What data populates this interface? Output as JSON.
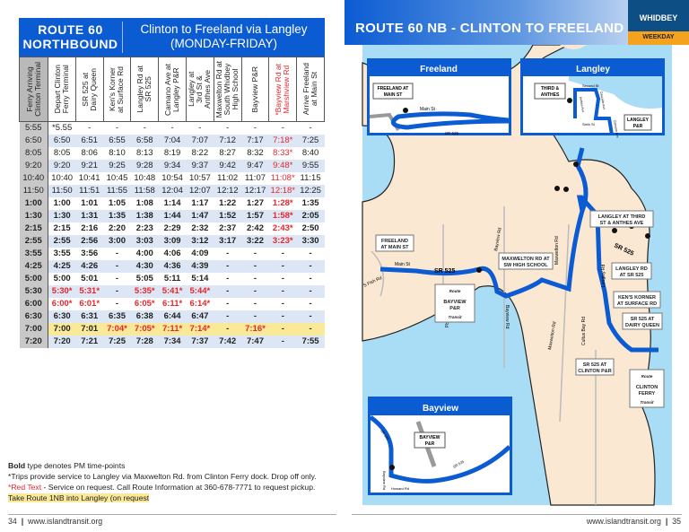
{
  "schedule": {
    "route": "ROUTE 60",
    "direction": "NORTHBOUND",
    "service": "Clinton to Freeland via Langley",
    "days": "(MONDAY-FRIDAY)",
    "columns": [
      {
        "label": "Ferry Arriving\nClinton Terminal"
      },
      {
        "label": "Depart Clinton\nFerry Terminal"
      },
      {
        "label": "SR 525 at\nDairy Queen"
      },
      {
        "label": "Ken's Korner\nat Surface Rd"
      },
      {
        "label": "Langley Rd at\nSR 525"
      },
      {
        "label": "Camano Ave at\nLangley P&R"
      },
      {
        "label": "Langley at\n3rd St &\nAnthes Ave"
      },
      {
        "label": "Maxwelton Rd at\nSouth Whidbey\nHigh School"
      },
      {
        "label": "Bayview P&R"
      },
      {
        "label": "*Bayview Rd at\nMarshview Rd",
        "red": true
      },
      {
        "label": "Arrive Freeland\nat Main St"
      }
    ],
    "rows": [
      {
        "pm": false,
        "cells": [
          "5:55",
          "*5.55",
          "-",
          "-",
          "-",
          "-",
          "-",
          "-",
          "-",
          "-",
          "-"
        ]
      },
      {
        "pm": false,
        "cells": [
          "6:50",
          "6:50",
          "6:51",
          "6:55",
          "6:58",
          "7:04",
          "7:07",
          "7:12",
          "7:17",
          "7:18*",
          "7:25"
        ]
      },
      {
        "pm": false,
        "cells": [
          "8:05",
          "8:05",
          "8:06",
          "8:10",
          "8:13",
          "8:19",
          "8:22",
          "8:27",
          "8:32",
          "8:33*",
          "8:40"
        ]
      },
      {
        "pm": false,
        "cells": [
          "9:20",
          "9:20",
          "9:21",
          "9:25",
          "9:28",
          "9:34",
          "9:37",
          "9:42",
          "9:47",
          "9:48*",
          "9:55"
        ]
      },
      {
        "pm": false,
        "cells": [
          "10:40",
          "10:40",
          "10:41",
          "10:45",
          "10:48",
          "10:54",
          "10:57",
          "11:02",
          "11:07",
          "11:08*",
          "11:15"
        ]
      },
      {
        "pm": false,
        "cells": [
          "11:50",
          "11:50",
          "11:51",
          "11:55",
          "11:58",
          "12:04",
          "12:07",
          "12:12",
          "12:17",
          "12:18*",
          "12:25"
        ]
      },
      {
        "pm": true,
        "cells": [
          "1:00",
          "1:00",
          "1:01",
          "1:05",
          "1:08",
          "1:14",
          "1:17",
          "1:22",
          "1:27",
          "1:28*",
          "1:35"
        ]
      },
      {
        "pm": true,
        "cells": [
          "1:30",
          "1:30",
          "1:31",
          "1:35",
          "1:38",
          "1:44",
          "1:47",
          "1:52",
          "1:57",
          "1:58*",
          "2:05"
        ]
      },
      {
        "pm": true,
        "cells": [
          "2:15",
          "2:15",
          "2:16",
          "2:20",
          "2:23",
          "2:29",
          "2:32",
          "2:37",
          "2:42",
          "2:43*",
          "2:50"
        ]
      },
      {
        "pm": true,
        "cells": [
          "2:55",
          "2:55",
          "2:56",
          "3:00",
          "3:03",
          "3:09",
          "3:12",
          "3:17",
          "3:22",
          "3:23*",
          "3:30"
        ]
      },
      {
        "pm": true,
        "cells": [
          "3:55",
          "3:55",
          "3:56",
          "-",
          "4:00",
          "4:06",
          "4:09",
          "-",
          "-",
          "-",
          "-"
        ]
      },
      {
        "pm": true,
        "cells": [
          "4:25",
          "4:25",
          "4:26",
          "-",
          "4:30",
          "4:36",
          "4:39",
          "-",
          "-",
          "-",
          "-"
        ]
      },
      {
        "pm": true,
        "cells": [
          "5:00",
          "5:00",
          "5:01",
          "-",
          "5:05",
          "5:11",
          "5:14",
          "-",
          "-",
          "-",
          "-"
        ]
      },
      {
        "pm": true,
        "cells": [
          "5:30",
          "5:30*",
          "5:31*",
          "-",
          "5:35*",
          "5:41*",
          "5:44*",
          "-",
          "-",
          "-",
          "-"
        ]
      },
      {
        "pm": true,
        "cells": [
          "6:00",
          "6:00*",
          "6:01*",
          "-",
          "6:05*",
          "6:11*",
          "6:14*",
          "-",
          "-",
          "-",
          "-"
        ]
      },
      {
        "pm": true,
        "cells": [
          "6:30",
          "6:30",
          "6:31",
          "6:35",
          "6:38",
          "6:44",
          "6:47",
          "-",
          "-",
          "-",
          "-"
        ]
      },
      {
        "pm": true,
        "highlight": true,
        "cells": [
          "7:00",
          "7:00",
          "7:01",
          "7:04*",
          "7:05*",
          "7:11*",
          "7:14*",
          "-",
          "7:16*",
          "-",
          "-"
        ]
      },
      {
        "pm": true,
        "cells": [
          "7:20",
          "7:20",
          "7:21",
          "7:25",
          "7:28",
          "7:34",
          "7:37",
          "7:42",
          "7:47",
          "-",
          "7:55"
        ]
      }
    ]
  },
  "notes": {
    "bold_word": "Bold",
    "bold_rest": " type denotes PM time-points",
    "asterisk": "*Trips provide service to Langley via Maxwelton Rd. from Clinton Ferry dock. Drop off only.",
    "red_word": "*Red Text",
    "red_rest": " - Service on request. Call Route Information at 360-678-7771 to request pickup.",
    "highlight": "Take Route 1NB into Langley (on request"
  },
  "footer_left": {
    "page": "34",
    "sep": "|",
    "url": "www.islandtransit.org"
  },
  "footer_right": {
    "page": "35",
    "sep": "|",
    "url": "www.islandtransit.org"
  },
  "map": {
    "title": "ROUTE 60 NB - CLINTON TO FREELAND",
    "region": "WHIDBEY",
    "day_type": "WEEKDAY",
    "colors": {
      "route": "#0b5bd3",
      "water": "#a9dcf5",
      "land": "#fbe8d3",
      "weekday": "#f5a21f",
      "region": "#0d4f84"
    },
    "insets": {
      "freeland": {
        "title": "Freeland",
        "stop1": "FREELAND AT",
        "stop2": "MAIN ST",
        "road1": "Main St",
        "road2": "SR 525"
      },
      "langley": {
        "title": "Langley",
        "stop_a1": "THIRD &",
        "stop_a2": "ANTHES",
        "stop_b1": "LANGLEY",
        "stop_b2": "P&R",
        "road1": "Second St",
        "road2": "Sixth St",
        "road3": "Anthes Ave",
        "road4": "Cascade Ave",
        "road5": "Camano Ave"
      },
      "bayview": {
        "title": "Bayview",
        "stop1": "BAYVIEW",
        "stop2": "P&R",
        "road1": "SR 525",
        "road2": "SR 525",
        "road3": "Bayview Rd",
        "road4": "Howard Rd"
      }
    },
    "stops": {
      "freeland_1": "FREELAND",
      "freeland_2": "AT MAIN ST",
      "langley_1": "LANGLEY AT THIRD",
      "langley_2": "ST & ANTHES AVE",
      "maxwelton_1": "MAXWELTON RD AT",
      "maxwelton_2": "SW HIGH SCHOOL",
      "langleyrd_1": "LANGLEY RD",
      "langleyrd_2": "AT SR 525",
      "kens_1": "KEN'S KORNER",
      "kens_2": "AT SURFACE RD",
      "dq_1": "SR 525 AT",
      "dq_2": "DAIRY QUEEN",
      "clintonpr_1": "SR 525 AT",
      "clintonpr_2": "CLINTON P&R",
      "bayview_1": "BAYVIEW",
      "bayview_2": "P&R",
      "ferry_1": "CLINTON",
      "ferry_2": "FERRY",
      "logo_top": "Route",
      "logo_bottom": "Transit"
    },
    "roads": {
      "sr525a": "SR 525",
      "sr525b": "SR 525",
      "main": "Main St",
      "fish": "S Fish Rd",
      "double_bluff": "Double Bluff Rd",
      "bayview": "Bayview Rd",
      "bayview2": "Bayview Rd",
      "maxwelton": "Maxwelton Rd",
      "maxwelton2": "Maxwelton Rd",
      "langley": "Langley Rd",
      "cultus": "Cultus Bay Rd"
    }
  }
}
